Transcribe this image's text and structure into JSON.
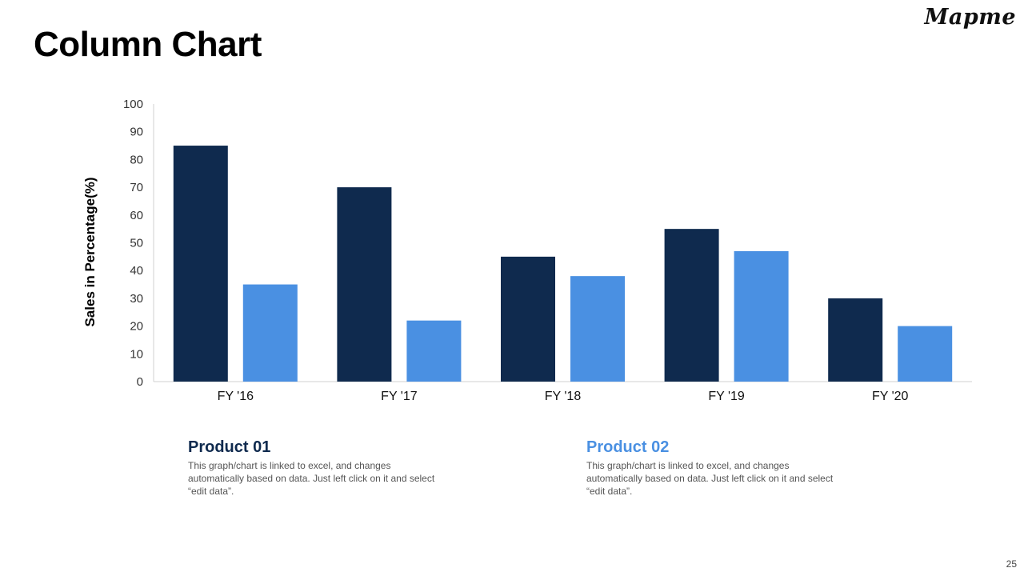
{
  "slide": {
    "title": "Column Chart",
    "logo": "Mapme",
    "page_number": "25"
  },
  "colors": {
    "product_01": "#0f2a4e",
    "product_02": "#4a90e2",
    "axis": "#d0d0d0"
  },
  "chart_data": {
    "type": "bar",
    "title": "",
    "xlabel": "",
    "ylabel": "Sales in Percentage(%)",
    "ylim": [
      0,
      100
    ],
    "yticks": [
      0,
      10,
      20,
      30,
      40,
      50,
      60,
      70,
      80,
      90,
      100
    ],
    "categories": [
      "FY '16",
      "FY '17",
      "FY '18",
      "FY '19",
      "FY '20"
    ],
    "series": [
      {
        "name": "Product 01",
        "values": [
          85,
          70,
          45,
          55,
          30
        ]
      },
      {
        "name": "Product 02",
        "values": [
          35,
          22,
          38,
          47,
          20
        ]
      }
    ],
    "grid": false
  },
  "legend": {
    "product_01": {
      "title": "Product 01",
      "text": "This graph/chart is linked to excel, and changes automatically based on data. Just left click on it and select “edit data”."
    },
    "product_02": {
      "title": "Product 02",
      "text": "This graph/chart is linked to excel, and changes automatically based on data. Just left click on it and select “edit data”."
    }
  }
}
